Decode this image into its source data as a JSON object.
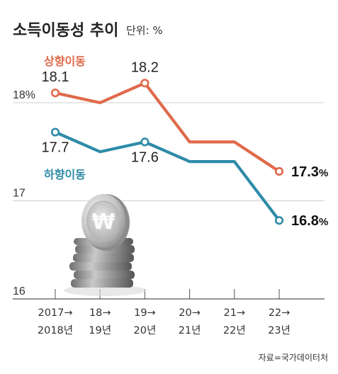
{
  "header": {
    "title": "소득이동성 추이",
    "unit": "단위: %"
  },
  "source": "자료=국가데이터처",
  "colors": {
    "upward": "#e0694a",
    "downward": "#2e8ba8",
    "grid": "#cfcfcf",
    "axis": "#555555"
  },
  "chart_data": {
    "type": "line",
    "title": "소득이동성 추이",
    "unit": "%",
    "categories": [
      [
        "2017→",
        "2018년"
      ],
      [
        "18→",
        "19년"
      ],
      [
        "19→",
        "20년"
      ],
      [
        "20→",
        "21년"
      ],
      [
        "21→",
        "22년"
      ],
      [
        "22→",
        "23년"
      ]
    ],
    "ylim": [
      16,
      18.2
    ],
    "yticks": [
      {
        "value": 16,
        "label": "16"
      },
      {
        "value": 17,
        "label": "17"
      },
      {
        "value": 18,
        "label": "18%"
      }
    ],
    "grid": true,
    "series": [
      {
        "name": "상향이동",
        "color": "#e0694a",
        "values": [
          18.1,
          18.0,
          18.2,
          17.6,
          17.6,
          17.3
        ],
        "labels": [
          {
            "index": 0,
            "text": "18.1"
          },
          {
            "index": 2,
            "text": "18.2"
          },
          {
            "index": 5,
            "text": "17.3",
            "suffix": "%"
          }
        ]
      },
      {
        "name": "하향이동",
        "color": "#2e8ba8",
        "values": [
          17.7,
          17.5,
          17.6,
          17.4,
          17.4,
          16.8
        ],
        "labels": [
          {
            "index": 0,
            "text": "17.7"
          },
          {
            "index": 2,
            "text": "17.6"
          },
          {
            "index": 5,
            "text": "16.8",
            "suffix": "%"
          }
        ]
      }
    ]
  }
}
